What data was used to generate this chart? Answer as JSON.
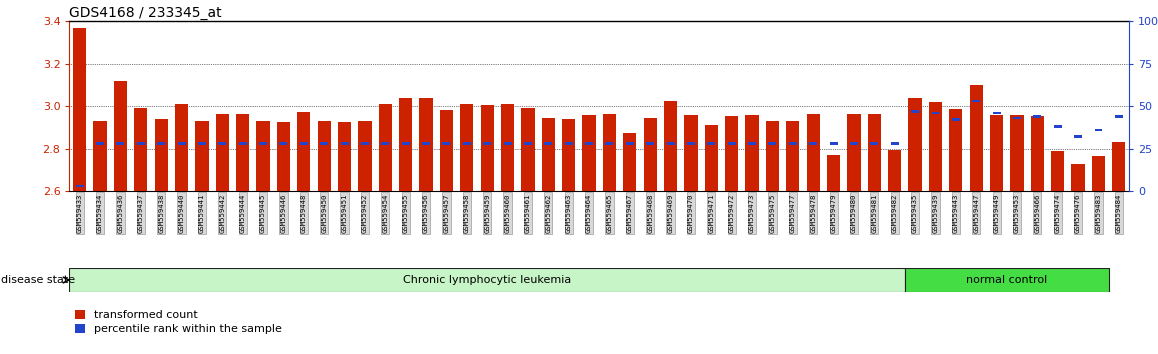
{
  "title": "GDS4168 / 233345_at",
  "samples": [
    "GSM559433",
    "GSM559434",
    "GSM559436",
    "GSM559437",
    "GSM559438",
    "GSM559440",
    "GSM559441",
    "GSM559442",
    "GSM559444",
    "GSM559445",
    "GSM559446",
    "GSM559448",
    "GSM559450",
    "GSM559451",
    "GSM559452",
    "GSM559454",
    "GSM559455",
    "GSM559456",
    "GSM559457",
    "GSM559458",
    "GSM559459",
    "GSM559460",
    "GSM559461",
    "GSM559462",
    "GSM559463",
    "GSM559464",
    "GSM559465",
    "GSM559467",
    "GSM559468",
    "GSM559469",
    "GSM559470",
    "GSM559471",
    "GSM559472",
    "GSM559473",
    "GSM559475",
    "GSM559477",
    "GSM559478",
    "GSM559479",
    "GSM559480",
    "GSM559481",
    "GSM559482",
    "GSM559435",
    "GSM559439",
    "GSM559443",
    "GSM559447",
    "GSM559449",
    "GSM559453",
    "GSM559466",
    "GSM559474",
    "GSM559476",
    "GSM559483",
    "GSM559484"
  ],
  "red_values": [
    3.37,
    2.93,
    3.12,
    2.99,
    2.94,
    3.01,
    2.93,
    2.965,
    2.965,
    2.93,
    2.925,
    2.975,
    2.93,
    2.925,
    2.93,
    3.01,
    3.04,
    3.04,
    2.98,
    3.01,
    3.005,
    3.01,
    2.99,
    2.945,
    2.94,
    2.96,
    2.965,
    2.875,
    2.945,
    3.025,
    2.96,
    2.91,
    2.955,
    2.96,
    2.93,
    2.93,
    2.965,
    2.77,
    2.965,
    2.965,
    2.795,
    3.04,
    3.02,
    2.985,
    3.1,
    2.96,
    2.96,
    2.955,
    2.79,
    2.73,
    2.765,
    2.83
  ],
  "percentile_ranks": [
    3,
    28,
    28,
    28,
    28,
    28,
    28,
    28,
    28,
    28,
    28,
    28,
    28,
    28,
    28,
    28,
    28,
    28,
    28,
    28,
    28,
    28,
    28,
    28,
    28,
    28,
    28,
    28,
    28,
    28,
    28,
    28,
    28,
    28,
    28,
    28,
    28,
    28,
    28,
    28,
    28,
    47,
    46,
    42,
    53,
    46,
    43,
    44,
    38,
    32,
    36,
    44
  ],
  "clust_boundary": 41,
  "disease_groups": [
    {
      "label": "Chronic lymphocytic leukemia",
      "start": 0,
      "end": 41,
      "color": "#c8f5c8"
    },
    {
      "label": "normal control",
      "start": 41,
      "end": 51,
      "color": "#44dd44"
    }
  ],
  "ylim_left": [
    2.6,
    3.4
  ],
  "ylim_right": [
    0,
    100
  ],
  "yticks_left": [
    2.6,
    2.8,
    3.0,
    3.2,
    3.4
  ],
  "yticks_right": [
    0,
    25,
    50,
    75,
    100
  ],
  "bar_color": "#cc2200",
  "blue_color": "#2244cc",
  "legend_items": [
    "transformed count",
    "percentile rank within the sample"
  ],
  "disease_state_label": "disease state"
}
